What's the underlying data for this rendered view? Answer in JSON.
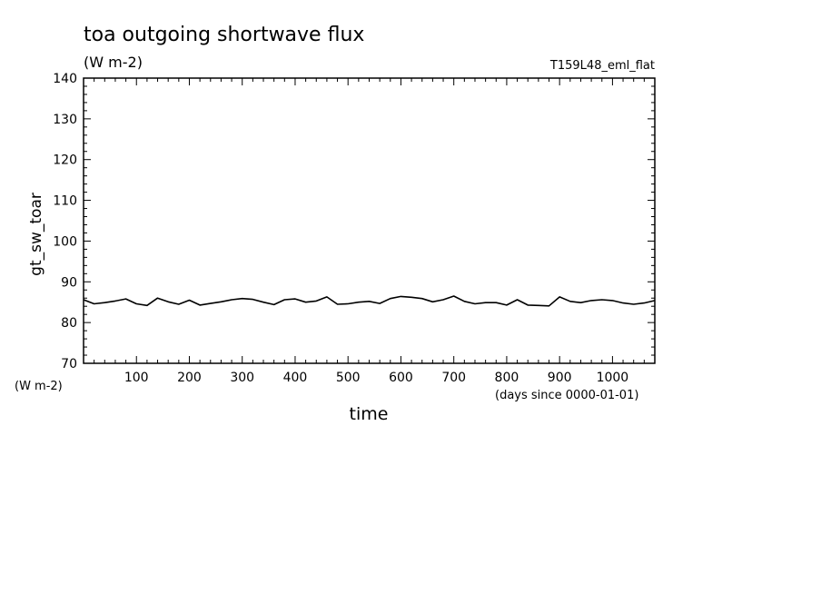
{
  "chart_data": {
    "type": "line",
    "title": "toa outgoing shortwave flux",
    "title_units": "(W m-2)",
    "experiment": "T159L48_eml_flat",
    "ylabel": "gt_sw_toar",
    "yunits": "(W m-2)",
    "xlabel": "time",
    "xunits": "(days since 0000-01-01)",
    "xlim": [
      0,
      1080
    ],
    "ylim": [
      70,
      140
    ],
    "xticks": [
      100,
      200,
      300,
      400,
      500,
      600,
      700,
      800,
      900,
      1000
    ],
    "yticks": [
      70,
      80,
      90,
      100,
      110,
      120,
      130,
      140
    ],
    "grid": false,
    "series": [
      {
        "x": [
          0,
          20,
          40,
          60,
          80,
          100,
          120,
          140,
          160,
          180,
          200,
          220,
          240,
          260,
          280,
          300,
          320,
          340,
          360,
          380,
          400,
          420,
          440,
          460,
          480,
          500,
          520,
          540,
          560,
          580,
          600,
          620,
          640,
          660,
          680,
          700,
          720,
          740,
          760,
          780,
          800,
          820,
          840,
          860,
          880,
          900,
          920,
          940,
          960,
          980,
          1000,
          1020,
          1040,
          1060,
          1080
        ],
        "values": [
          85.6,
          84.6,
          84.9,
          85.3,
          85.8,
          84.6,
          84.2,
          86.0,
          85.1,
          84.5,
          85.5,
          84.3,
          84.7,
          85.1,
          85.6,
          85.9,
          85.7,
          85.0,
          84.4,
          85.6,
          85.8,
          85.0,
          85.3,
          86.3,
          84.5,
          84.6,
          85.0,
          85.2,
          84.7,
          85.9,
          86.4,
          86.2,
          85.9,
          85.1,
          85.6,
          86.5,
          85.2,
          84.6,
          84.9,
          84.9,
          84.3,
          85.6,
          84.3,
          84.2,
          84.1,
          86.3,
          85.2,
          84.9,
          85.4,
          85.6,
          85.4,
          84.8,
          84.5,
          84.8,
          85.4
        ]
      }
    ]
  }
}
